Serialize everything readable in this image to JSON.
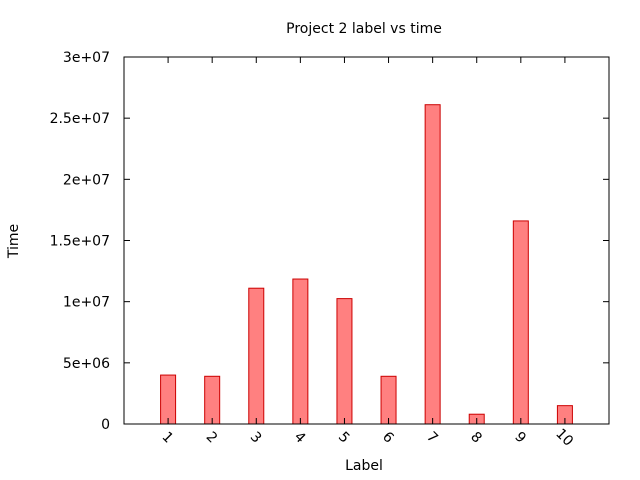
{
  "chart_data": {
    "type": "bar",
    "title": "Project 2 label vs time",
    "xlabel": "Label",
    "ylabel": "Time",
    "categories": [
      "1",
      "2",
      "3",
      "4",
      "5",
      "6",
      "7",
      "8",
      "9",
      "10"
    ],
    "values": [
      4000000,
      3900000,
      11100000,
      11850000,
      10250000,
      3900000,
      26100000,
      800000,
      16600000,
      1500000
    ],
    "ylim": [
      0,
      30000000
    ],
    "yticks": [
      {
        "value": 0,
        "label": "0"
      },
      {
        "value": 5000000,
        "label": "5e+06"
      },
      {
        "value": 10000000,
        "label": "1e+07"
      },
      {
        "value": 15000000,
        "label": "1.5e+07"
      },
      {
        "value": 20000000,
        "label": "2e+07"
      },
      {
        "value": 25000000,
        "label": "2.5e+07"
      },
      {
        "value": 30000000,
        "label": "3e+07"
      }
    ],
    "grid": false,
    "legend": "none",
    "colors": {
      "bar_fill": "#ff8080",
      "bar_stroke": "#cc0000",
      "axis": "#000000"
    }
  }
}
